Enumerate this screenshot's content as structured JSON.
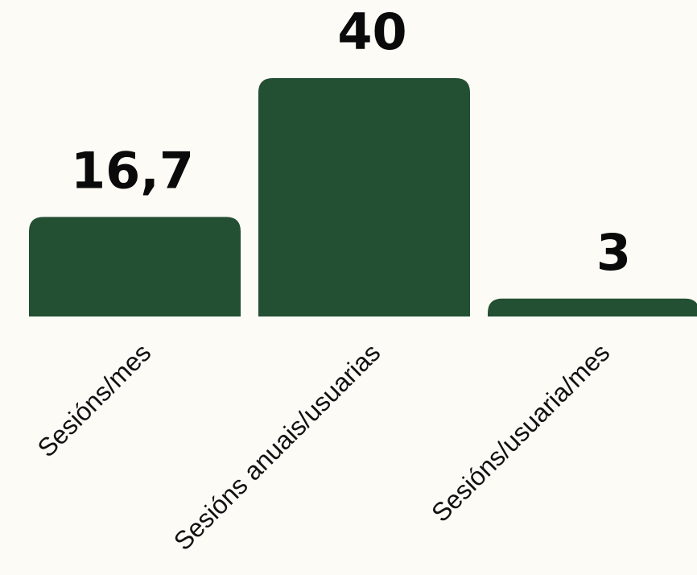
{
  "chart_data": {
    "type": "bar",
    "categories": [
      "Sesións/mes",
      "Sesións anuais/usuarias",
      "Sesións/usuaria/mes"
    ],
    "values": [
      16.7,
      40,
      3
    ],
    "value_labels": [
      "16,7",
      "40",
      "3"
    ],
    "title": "",
    "xlabel": "",
    "ylabel": "",
    "ylim": [
      0,
      40
    ],
    "grid": false,
    "legend": "none",
    "bar_color": "#234f32",
    "background_color": "#fcfbf6",
    "label_color": "#0a0a0a"
  }
}
